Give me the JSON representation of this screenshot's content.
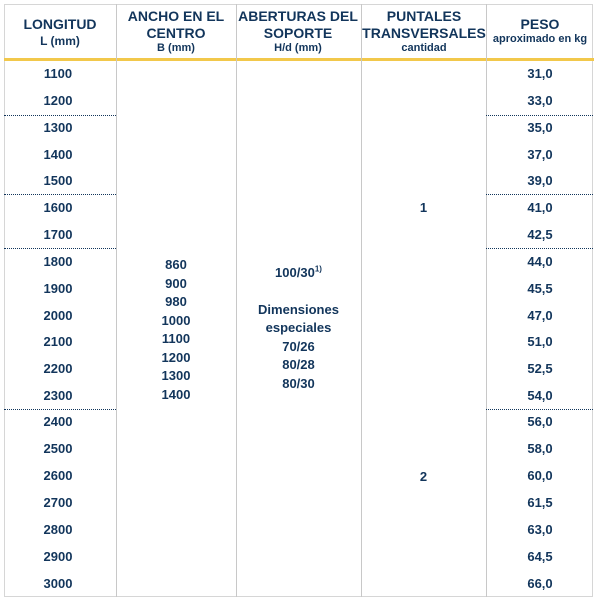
{
  "header": {
    "col1_main": "LONGITUD",
    "col1_sub": "L (mm)",
    "col2_main": "ANCHO EN EL CENTRO",
    "col2_sub": "B (mm)",
    "col3_main": "ABERTURAS DEL SOPORTE",
    "col3_sub": "H/d (mm)",
    "col4_main": "PUNTALES TRANSVERSALES",
    "col4_sub": "cantidad",
    "col5_main": "PESO",
    "col5_sub": "aproximado en kg"
  },
  "rows": [
    {
      "length": "1100",
      "weight": "31,0"
    },
    {
      "length": "1200",
      "weight": "33,0"
    },
    {
      "length": "1300",
      "weight": "35,0"
    },
    {
      "length": "1400",
      "weight": "37,0"
    },
    {
      "length": "1500",
      "weight": "39,0"
    },
    {
      "length": "1600",
      "weight": "41,0"
    },
    {
      "length": "1700",
      "weight": "42,5"
    },
    {
      "length": "1800",
      "weight": "44,0"
    },
    {
      "length": "1900",
      "weight": "45,5"
    },
    {
      "length": "2000",
      "weight": "47,0"
    },
    {
      "length": "2100",
      "weight": "51,0"
    },
    {
      "length": "2200",
      "weight": "52,5"
    },
    {
      "length": "2300",
      "weight": "54,0"
    },
    {
      "length": "2400",
      "weight": "56,0"
    },
    {
      "length": "2500",
      "weight": "58,0"
    },
    {
      "length": "2600",
      "weight": "60,0"
    },
    {
      "length": "2700",
      "weight": "61,5"
    },
    {
      "length": "2800",
      "weight": "63,0"
    },
    {
      "length": "2900",
      "weight": "64,5"
    },
    {
      "length": "3000",
      "weight": "66,0"
    }
  ],
  "widths": [
    "860",
    "900",
    "980",
    "1000",
    "1100",
    "1200",
    "1300",
    "1400"
  ],
  "openings": {
    "standard": "100/30",
    "standard_note": "1)",
    "special_label_1": "Dimensiones",
    "special_label_2": "especiales",
    "special_values": [
      "70/26",
      "80/28",
      "80/30"
    ]
  },
  "crossbars": {
    "group1": "1",
    "group2": "2"
  }
}
